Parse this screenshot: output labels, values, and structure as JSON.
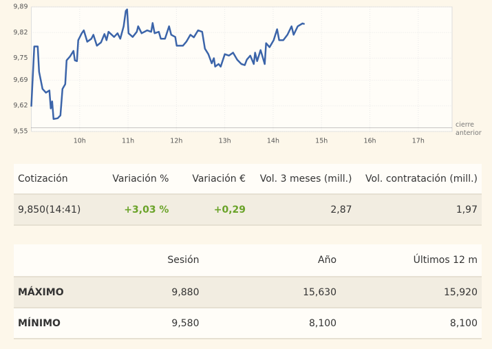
{
  "chart_data": {
    "type": "line",
    "x": [
      9.0,
      9.061,
      9.132,
      9.161,
      9.232,
      9.303,
      9.374,
      9.403,
      9.431,
      9.459,
      9.545,
      9.602,
      9.644,
      9.701,
      9.73,
      9.801,
      9.872,
      9.9,
      9.943,
      9.971,
      10.043,
      10.085,
      10.156,
      10.242,
      10.284,
      10.356,
      10.441,
      10.512,
      10.555,
      10.597,
      10.711,
      10.782,
      10.839,
      10.91,
      10.953,
      10.981,
      11.01,
      11.095,
      11.181,
      11.209,
      11.28,
      11.394,
      11.479,
      11.508,
      11.55,
      11.636,
      11.678,
      11.764,
      11.849,
      11.892,
      11.977,
      12.006,
      12.134,
      12.205,
      12.29,
      12.361,
      12.447,
      12.532,
      12.589,
      12.66,
      12.731,
      12.774,
      12.802,
      12.873,
      12.916,
      13.001,
      13.087,
      13.172,
      13.257,
      13.343,
      13.414,
      13.456,
      13.527,
      13.599,
      13.627,
      13.67,
      13.741,
      13.826,
      13.855,
      13.926,
      14.011,
      14.082,
      14.125,
      14.21,
      14.296,
      14.381,
      14.424,
      14.509,
      14.609,
      14.651
    ],
    "series": [
      {
        "color": "#3b64a9",
        "values": [
          9.618,
          9.782,
          9.782,
          9.713,
          9.666,
          9.656,
          9.662,
          9.613,
          9.632,
          9.584,
          9.586,
          9.594,
          9.666,
          9.679,
          9.744,
          9.755,
          9.77,
          9.744,
          9.742,
          9.799,
          9.818,
          9.826,
          9.795,
          9.803,
          9.814,
          9.784,
          9.793,
          9.816,
          9.799,
          9.822,
          9.808,
          9.818,
          9.803,
          9.837,
          9.879,
          9.883,
          9.818,
          9.808,
          9.822,
          9.837,
          9.818,
          9.826,
          9.822,
          9.846,
          9.818,
          9.822,
          9.803,
          9.803,
          9.837,
          9.814,
          9.808,
          9.784,
          9.784,
          9.795,
          9.814,
          9.807,
          9.826,
          9.822,
          9.776,
          9.761,
          9.736,
          9.75,
          9.727,
          9.734,
          9.727,
          9.761,
          9.757,
          9.765,
          9.746,
          9.734,
          9.731,
          9.746,
          9.757,
          9.734,
          9.765,
          9.742,
          9.772,
          9.734,
          9.791,
          9.78,
          9.799,
          9.829,
          9.799,
          9.799,
          9.814,
          9.837,
          9.814,
          9.837,
          9.845,
          9.843
        ]
      }
    ],
    "xlim": [
      9,
      17.7
    ],
    "xticks": [
      {
        "value": 10,
        "label": "10h"
      },
      {
        "value": 11,
        "label": "11h"
      },
      {
        "value": 12,
        "label": "12h"
      },
      {
        "value": 13,
        "label": "13h"
      },
      {
        "value": 14,
        "label": "14h"
      },
      {
        "value": 15,
        "label": "15h"
      },
      {
        "value": 16,
        "label": "16h"
      },
      {
        "value": 17,
        "label": "17h"
      }
    ],
    "ylim": [
      9.55,
      9.89
    ],
    "yticks": [
      {
        "value": 9.55,
        "label": "9,55"
      },
      {
        "value": 9.62,
        "label": "9,62"
      },
      {
        "value": 9.69,
        "label": "9,69"
      },
      {
        "value": 9.75,
        "label": "9,75"
      },
      {
        "value": 9.82,
        "label": "9,82"
      },
      {
        "value": 9.89,
        "label": "9,89"
      }
    ],
    "grid": true,
    "reference_line": 9.56,
    "annotation": "cierre anterior"
  },
  "quote_table": {
    "headers": [
      "Cotización",
      "Variación %",
      "Variación €",
      "Vol. 3 meses (mill.)",
      "Vol. contratación (mill.)"
    ],
    "rows": [
      [
        "9,850(14:41)",
        "+3,03 %",
        "+0,29",
        "2,87",
        "1,97"
      ]
    ]
  },
  "range_table": {
    "headers": [
      "Sesión",
      "Año",
      "Últimos 12 m"
    ],
    "rows": [
      [
        "MÁXIMO",
        "9,880",
        "15,630",
        "15,920"
      ],
      [
        "MÍNIMO",
        "9,580",
        "8,100",
        "8,100"
      ]
    ]
  }
}
